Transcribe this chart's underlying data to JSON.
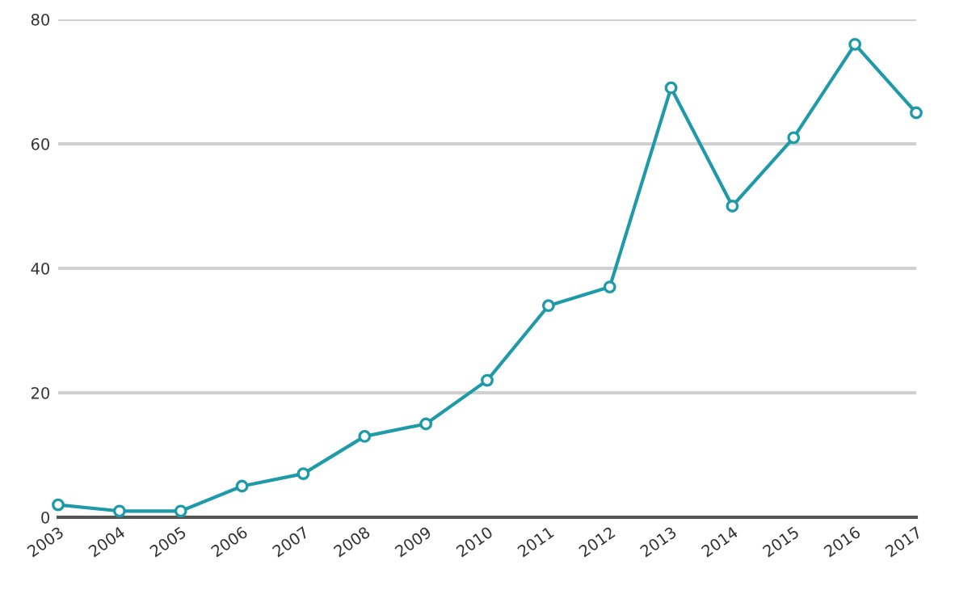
{
  "chart_data": {
    "type": "line",
    "categories": [
      "2003",
      "2004",
      "2005",
      "2006",
      "2007",
      "2008",
      "2009",
      "2010",
      "2011",
      "2012",
      "2013",
      "2014",
      "2015",
      "2016",
      "2017"
    ],
    "series": [
      {
        "color": "#1e9aa8",
        "values": [
          2,
          1,
          1,
          5,
          7,
          13,
          15,
          22,
          34,
          37,
          69,
          50,
          61,
          76,
          65
        ]
      }
    ],
    "ylim": [
      0,
      80
    ],
    "yticks": [
      0,
      20,
      40,
      60,
      80
    ],
    "grid": "y",
    "marker": "circle",
    "line_style": "solid"
  }
}
